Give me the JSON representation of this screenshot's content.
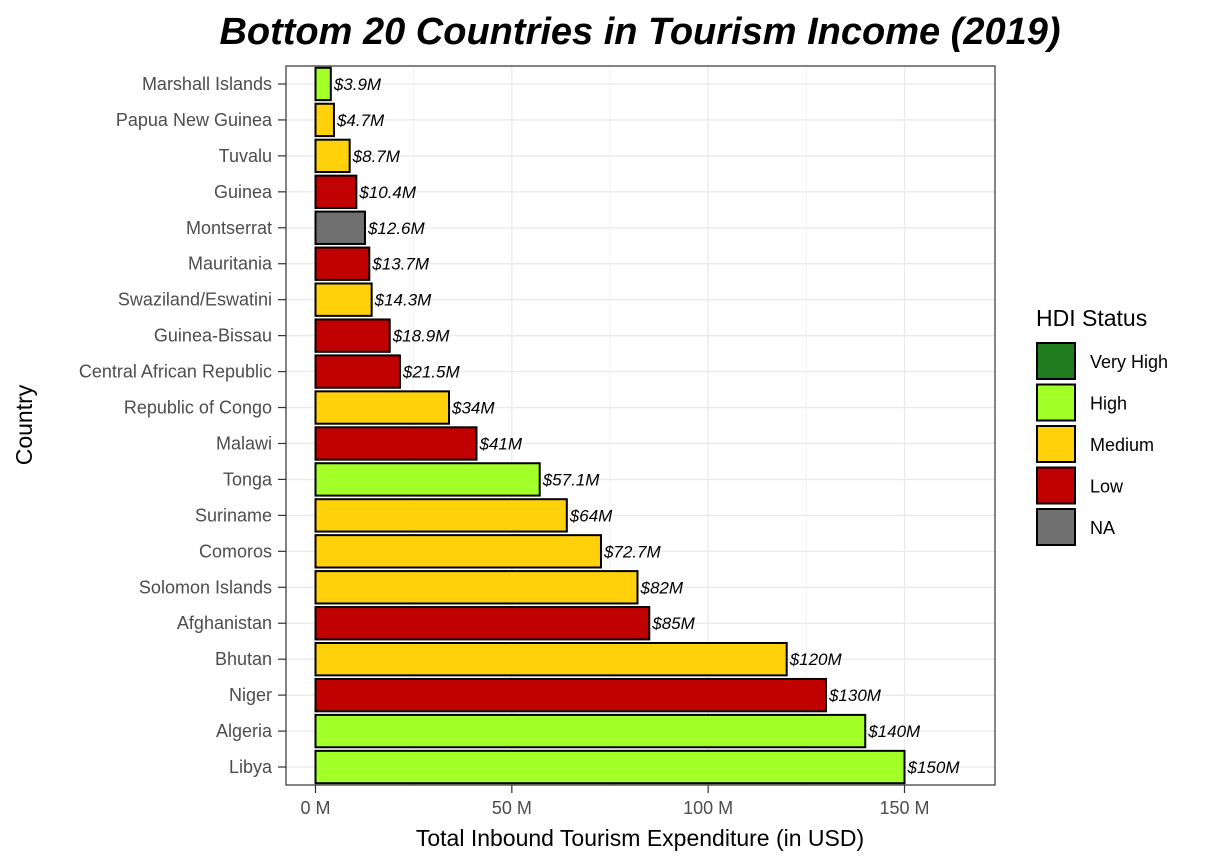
{
  "chart_data": {
    "type": "bar",
    "orientation": "horizontal",
    "title": "Bottom 20 Countries in Tourism Income (2019)",
    "xlabel": "Total Inbound Tourism Expenditure (in USD)",
    "ylabel": "Country",
    "xlim": [
      0,
      165
    ],
    "x_ticks": [
      0,
      50,
      100,
      150
    ],
    "x_tick_labels": [
      "0 M",
      "50 M",
      "100 M",
      "150 M"
    ],
    "grid": true,
    "legend": {
      "title": "HDI Status",
      "position": "right",
      "entries": [
        {
          "label": "Very High",
          "color": "#1e7b1e"
        },
        {
          "label": "High",
          "color": "#a2ff28"
        },
        {
          "label": "Medium",
          "color": "#ffd10a"
        },
        {
          "label": "Low",
          "color": "#c10000"
        },
        {
          "label": "NA",
          "color": "#707070"
        }
      ]
    },
    "bars": [
      {
        "country": "Marshall Islands",
        "value": 3.9,
        "label": "$3.9M",
        "hdi": "High"
      },
      {
        "country": "Papua New Guinea",
        "value": 4.7,
        "label": "$4.7M",
        "hdi": "Medium"
      },
      {
        "country": "Tuvalu",
        "value": 8.7,
        "label": "$8.7M",
        "hdi": "Medium"
      },
      {
        "country": "Guinea",
        "value": 10.4,
        "label": "$10.4M",
        "hdi": "Low"
      },
      {
        "country": "Montserrat",
        "value": 12.6,
        "label": "$12.6M",
        "hdi": "NA"
      },
      {
        "country": "Mauritania",
        "value": 13.7,
        "label": "$13.7M",
        "hdi": "Low"
      },
      {
        "country": "Swaziland/Eswatini",
        "value": 14.3,
        "label": "$14.3M",
        "hdi": "Medium"
      },
      {
        "country": "Guinea-Bissau",
        "value": 18.9,
        "label": "$18.9M",
        "hdi": "Low"
      },
      {
        "country": "Central African Republic",
        "value": 21.5,
        "label": "$21.5M",
        "hdi": "Low"
      },
      {
        "country": "Republic of Congo",
        "value": 34,
        "label": "$34M",
        "hdi": "Medium"
      },
      {
        "country": "Malawi",
        "value": 41,
        "label": "$41M",
        "hdi": "Low"
      },
      {
        "country": "Tonga",
        "value": 57.1,
        "label": "$57.1M",
        "hdi": "High"
      },
      {
        "country": "Suriname",
        "value": 64,
        "label": "$64M",
        "hdi": "Medium"
      },
      {
        "country": "Comoros",
        "value": 72.7,
        "label": "$72.7M",
        "hdi": "Medium"
      },
      {
        "country": "Solomon Islands",
        "value": 82,
        "label": "$82M",
        "hdi": "Medium"
      },
      {
        "country": "Afghanistan",
        "value": 85,
        "label": "$85M",
        "hdi": "Low"
      },
      {
        "country": "Bhutan",
        "value": 120,
        "label": "$120M",
        "hdi": "Medium"
      },
      {
        "country": "Niger",
        "value": 130,
        "label": "$130M",
        "hdi": "Low"
      },
      {
        "country": "Algeria",
        "value": 140,
        "label": "$140M",
        "hdi": "High"
      },
      {
        "country": "Libya",
        "value": 150,
        "label": "$150M",
        "hdi": "High"
      }
    ]
  }
}
